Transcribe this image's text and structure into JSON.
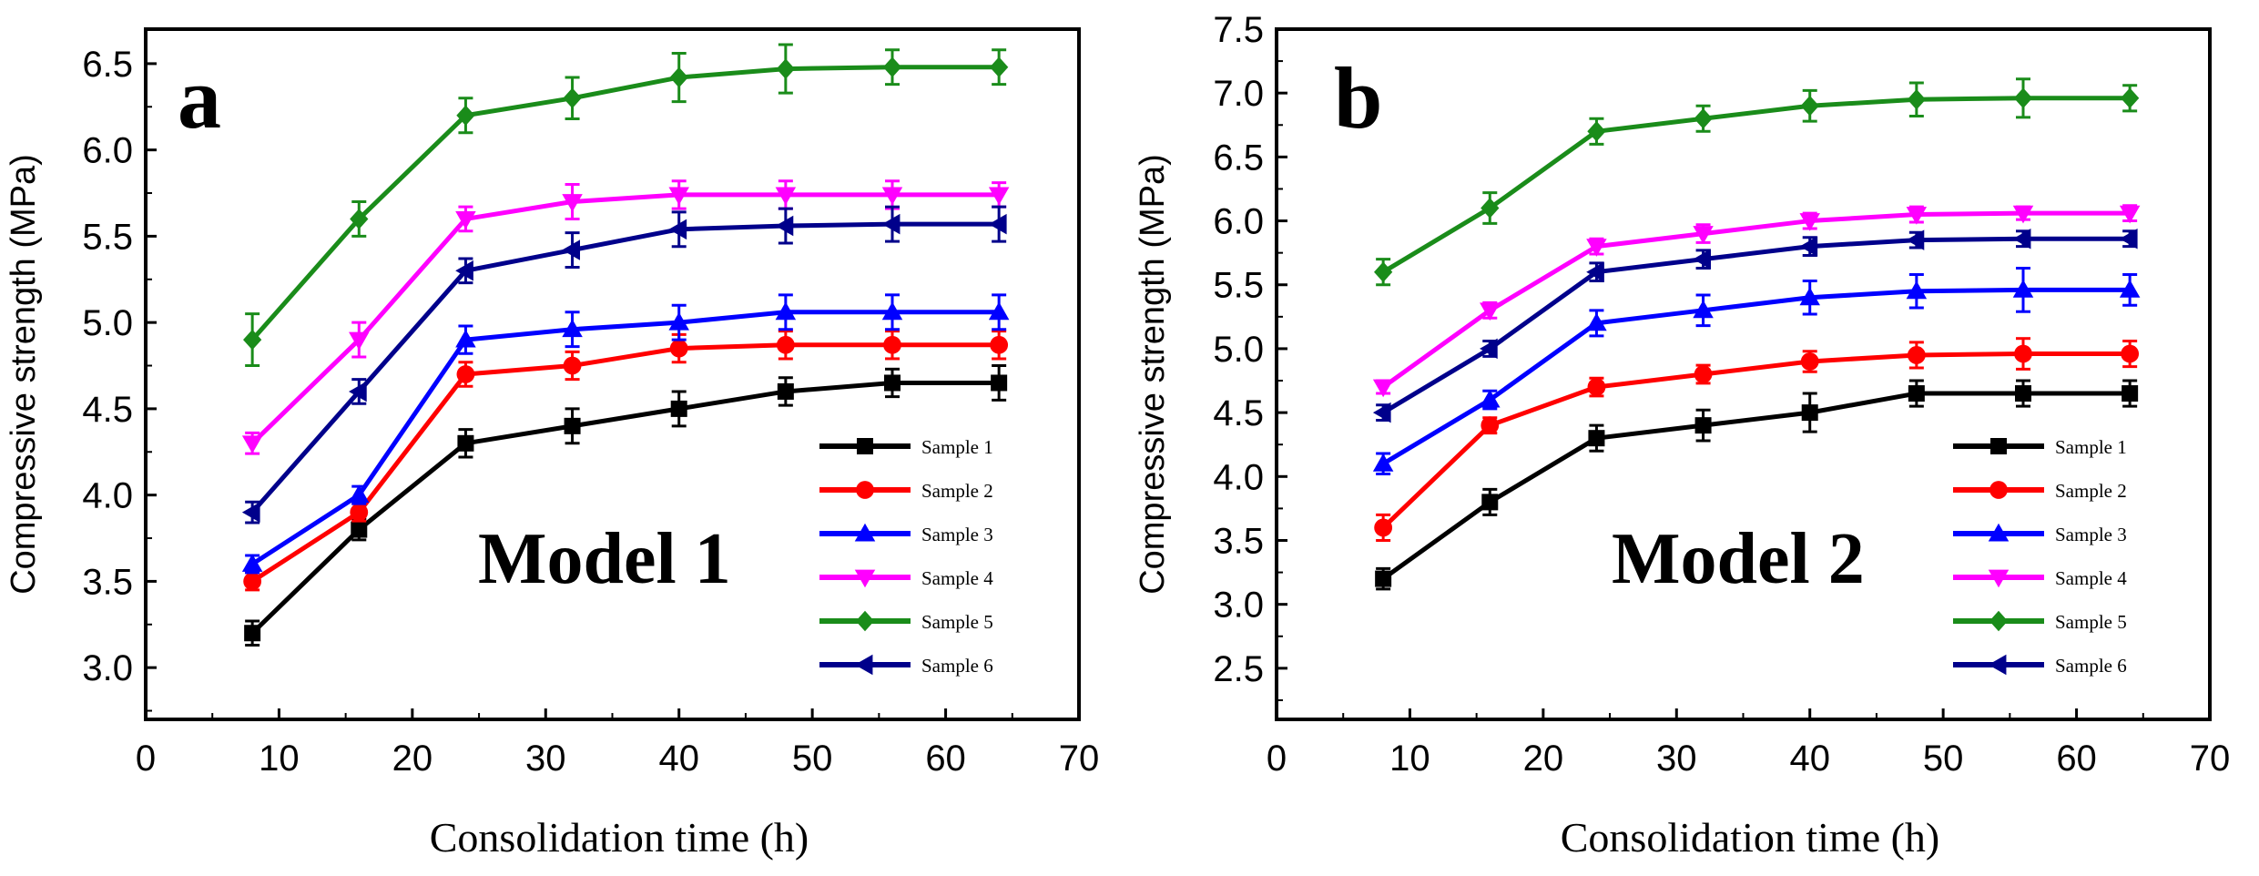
{
  "chart_data": [
    {
      "type": "line",
      "panel_label": "a",
      "annotation": "Model 1",
      "title": "",
      "xlabel": "Consolidation time (h)",
      "ylabel": "Compressive strength (MPa)",
      "xlim": [
        0,
        70
      ],
      "ylim": [
        2.7,
        6.7
      ],
      "xticks": [
        "0",
        "10",
        "20",
        "30",
        "40",
        "50",
        "60",
        "70"
      ],
      "yticks": [
        "3.0",
        "3.5",
        "4.0",
        "4.5",
        "5.0",
        "5.5",
        "6.0",
        "6.5"
      ],
      "x": [
        8,
        16,
        24,
        32,
        40,
        48,
        56,
        64
      ],
      "legend_position": "bottom-right",
      "series": [
        {
          "name": "Sample 1",
          "color": "#000000",
          "marker": "square",
          "values": [
            3.2,
            3.8,
            4.3,
            4.4,
            4.5,
            4.6,
            4.65,
            4.65
          ],
          "errors": [
            0.07,
            0.06,
            0.08,
            0.1,
            0.1,
            0.08,
            0.08,
            0.1
          ]
        },
        {
          "name": "Sample 2",
          "color": "#ff0000",
          "marker": "circle",
          "values": [
            3.5,
            3.9,
            4.7,
            4.75,
            4.85,
            4.87,
            4.87,
            4.87
          ],
          "errors": [
            0.05,
            0.05,
            0.07,
            0.08,
            0.08,
            0.08,
            0.08,
            0.08
          ]
        },
        {
          "name": "Sample 3",
          "color": "#0000ff",
          "marker": "triangle-up",
          "values": [
            3.6,
            4.0,
            4.9,
            4.96,
            5.0,
            5.06,
            5.06,
            5.06
          ],
          "errors": [
            0.05,
            0.05,
            0.08,
            0.1,
            0.1,
            0.1,
            0.1,
            0.1
          ]
        },
        {
          "name": "Sample 4",
          "color": "#ff00ff",
          "marker": "triangle-down",
          "values": [
            4.3,
            4.9,
            5.6,
            5.7,
            5.74,
            5.74,
            5.74,
            5.74
          ],
          "errors": [
            0.06,
            0.1,
            0.07,
            0.1,
            0.08,
            0.08,
            0.08,
            0.07
          ]
        },
        {
          "name": "Sample 5",
          "color": "#1a8c1a",
          "marker": "diamond",
          "values": [
            4.9,
            5.6,
            6.2,
            6.3,
            6.42,
            6.47,
            6.48,
            6.48
          ],
          "errors": [
            0.15,
            0.1,
            0.1,
            0.12,
            0.14,
            0.14,
            0.1,
            0.1
          ]
        },
        {
          "name": "Sample 6",
          "color": "#00008b",
          "marker": "triangle-left",
          "values": [
            3.9,
            4.6,
            5.3,
            5.42,
            5.54,
            5.56,
            5.57,
            5.57
          ],
          "errors": [
            0.06,
            0.07,
            0.07,
            0.1,
            0.1,
            0.1,
            0.1,
            0.1
          ]
        }
      ]
    },
    {
      "type": "line",
      "panel_label": "b",
      "annotation": "Model 2",
      "title": "",
      "xlabel": "Consolidation time (h)",
      "ylabel": "Compressive strength (MPa)",
      "xlim": [
        0,
        70
      ],
      "ylim": [
        2.1,
        7.5
      ],
      "xticks": [
        "0",
        "10",
        "20",
        "30",
        "40",
        "50",
        "60",
        "70"
      ],
      "yticks": [
        "2.5",
        "3.0",
        "3.5",
        "4.0",
        "4.5",
        "5.0",
        "5.5",
        "6.0",
        "6.5",
        "7.0",
        "7.5"
      ],
      "x": [
        8,
        16,
        24,
        32,
        40,
        48,
        56,
        64
      ],
      "legend_position": "bottom-right",
      "series": [
        {
          "name": "Sample 1",
          "color": "#000000",
          "marker": "square",
          "values": [
            3.2,
            3.8,
            4.3,
            4.4,
            4.5,
            4.65,
            4.65,
            4.65
          ],
          "errors": [
            0.08,
            0.1,
            0.1,
            0.12,
            0.15,
            0.1,
            0.1,
            0.1
          ]
        },
        {
          "name": "Sample 2",
          "color": "#ff0000",
          "marker": "circle",
          "values": [
            3.6,
            4.4,
            4.7,
            4.8,
            4.9,
            4.95,
            4.96,
            4.96
          ],
          "errors": [
            0.1,
            0.06,
            0.07,
            0.07,
            0.08,
            0.1,
            0.12,
            0.1
          ]
        },
        {
          "name": "Sample 3",
          "color": "#0000ff",
          "marker": "triangle-up",
          "values": [
            4.1,
            4.6,
            5.2,
            5.3,
            5.4,
            5.45,
            5.46,
            5.46
          ],
          "errors": [
            0.08,
            0.07,
            0.1,
            0.12,
            0.13,
            0.13,
            0.17,
            0.12
          ]
        },
        {
          "name": "Sample 4",
          "color": "#ff00ff",
          "marker": "triangle-down",
          "values": [
            4.7,
            5.3,
            5.8,
            5.9,
            6.0,
            6.05,
            6.06,
            6.06
          ],
          "errors": [
            0.05,
            0.06,
            0.06,
            0.07,
            0.06,
            0.06,
            0.05,
            0.06
          ]
        },
        {
          "name": "Sample 5",
          "color": "#1a8c1a",
          "marker": "diamond",
          "values": [
            5.6,
            6.1,
            6.7,
            6.8,
            6.9,
            6.95,
            6.96,
            6.96
          ],
          "errors": [
            0.1,
            0.12,
            0.1,
            0.1,
            0.12,
            0.13,
            0.15,
            0.1
          ]
        },
        {
          "name": "Sample 6",
          "color": "#00008b",
          "marker": "triangle-left",
          "values": [
            4.5,
            5.0,
            5.6,
            5.7,
            5.8,
            5.85,
            5.86,
            5.86
          ],
          "errors": [
            0.06,
            0.06,
            0.07,
            0.07,
            0.07,
            0.06,
            0.06,
            0.06
          ]
        }
      ]
    }
  ]
}
